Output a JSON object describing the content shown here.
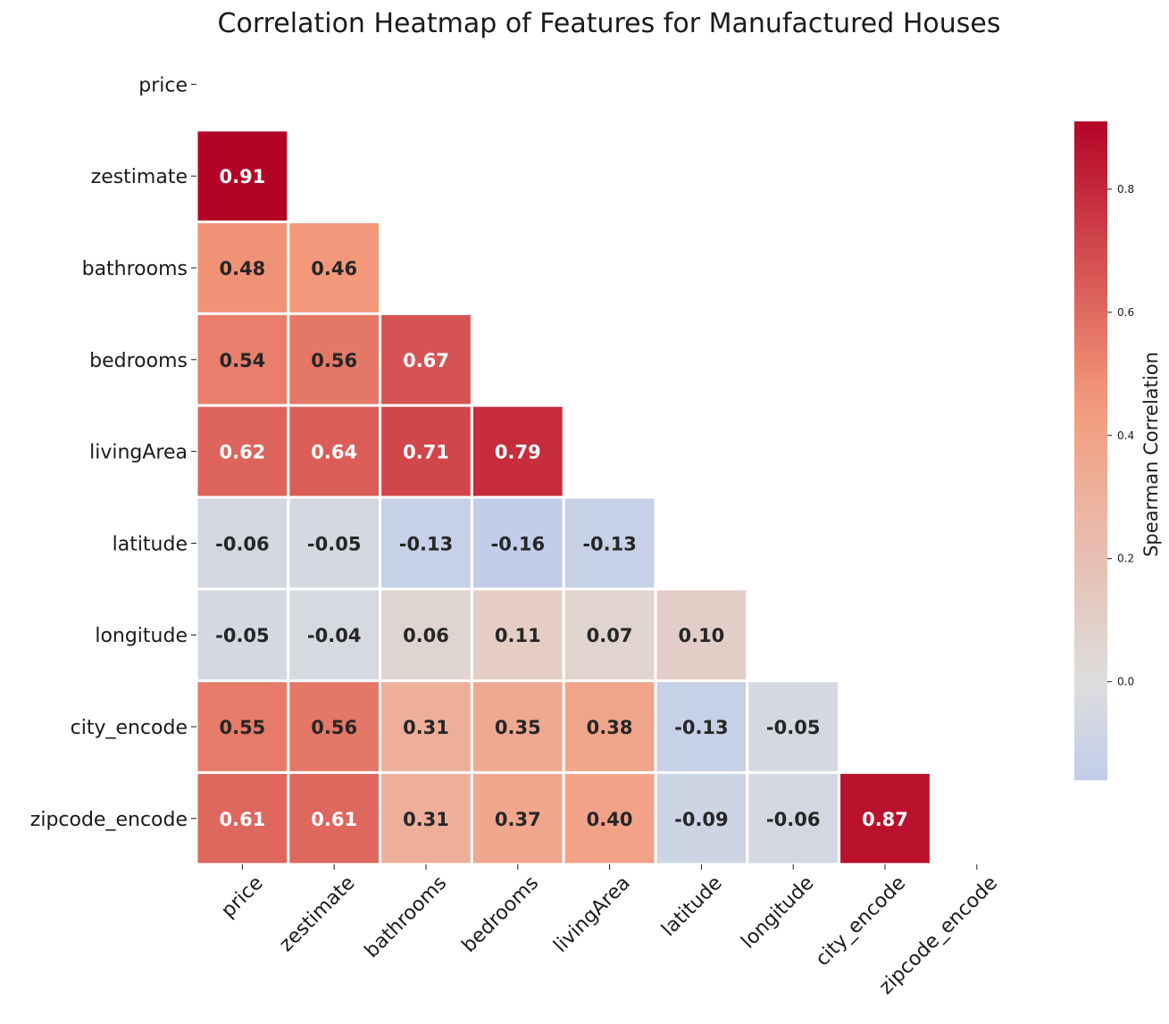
{
  "chart_data": {
    "type": "heatmap",
    "title": "Correlation Heatmap of Features for Manufactured Houses",
    "row_labels": [
      "price",
      "zestimate",
      "bathrooms",
      "bedrooms",
      "livingArea",
      "latitude",
      "longitude",
      "city_encode",
      "zipcode_encode"
    ],
    "col_labels": [
      "price",
      "zestimate",
      "bathrooms",
      "bedrooms",
      "livingArea",
      "latitude",
      "longitude",
      "city_encode",
      "zipcode_encode"
    ],
    "mask": "upper-triangle-including-diagonal",
    "values": [
      [
        null,
        null,
        null,
        null,
        null,
        null,
        null,
        null,
        null
      ],
      [
        0.91,
        null,
        null,
        null,
        null,
        null,
        null,
        null,
        null
      ],
      [
        0.48,
        0.46,
        null,
        null,
        null,
        null,
        null,
        null,
        null
      ],
      [
        0.54,
        0.56,
        0.67,
        null,
        null,
        null,
        null,
        null,
        null
      ],
      [
        0.62,
        0.64,
        0.71,
        0.79,
        null,
        null,
        null,
        null,
        null
      ],
      [
        -0.06,
        -0.05,
        -0.13,
        -0.16,
        -0.13,
        null,
        null,
        null,
        null
      ],
      [
        -0.05,
        -0.04,
        0.06,
        0.11,
        0.07,
        0.1,
        null,
        null,
        null
      ],
      [
        0.55,
        0.56,
        0.31,
        0.35,
        0.38,
        -0.13,
        -0.05,
        null,
        null
      ],
      [
        0.61,
        0.61,
        0.31,
        0.37,
        0.4,
        -0.09,
        -0.06,
        0.87,
        null
      ]
    ],
    "value_format": "0.00",
    "colormap": "coolwarm",
    "vmin": -0.16,
    "vmax": 0.91,
    "colorbar": {
      "label": "Spearman Correlation",
      "ticks": [
        0.0,
        0.2,
        0.4,
        0.6,
        0.8
      ],
      "tick_labels": [
        "0.0",
        "0.2",
        "0.4",
        "0.6",
        "0.8"
      ]
    }
  }
}
